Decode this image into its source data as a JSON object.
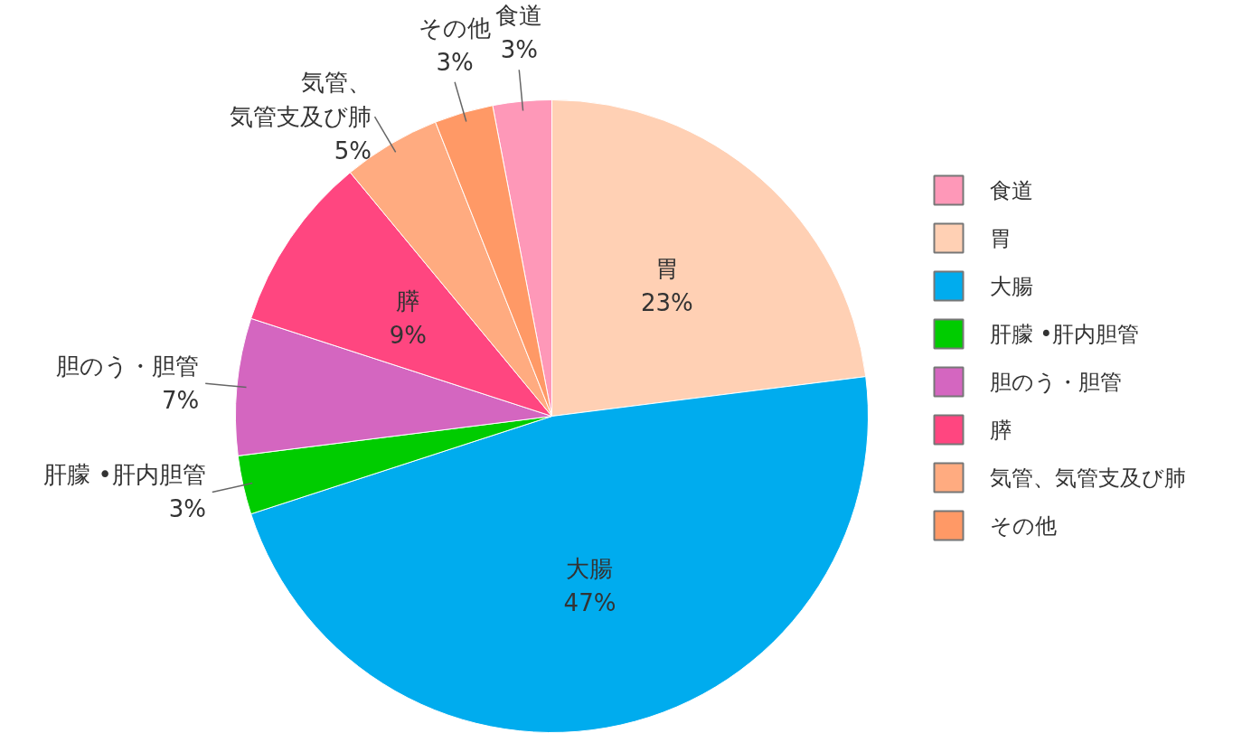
{
  "chart_data": {
    "type": "pie",
    "categories": [
      "食道",
      "胃",
      "大腸",
      "肝朦 •肝内胆管",
      "胆のう・胆管",
      "膵",
      "気管、気管支及び肺",
      "その他"
    ],
    "values": [
      3,
      23,
      47,
      3,
      7,
      9,
      5,
      3
    ],
    "value_labels": [
      "3%",
      "23%",
      "47%",
      "3%",
      "7%",
      "9%",
      "5%",
      "3%"
    ],
    "colors": [
      "#fe98b8",
      "#ffd0b4",
      "#00acee",
      "#00cc00",
      "#d466c0",
      "#ff4680",
      "#ffab80",
      "#ff9966"
    ],
    "legend": "right"
  }
}
